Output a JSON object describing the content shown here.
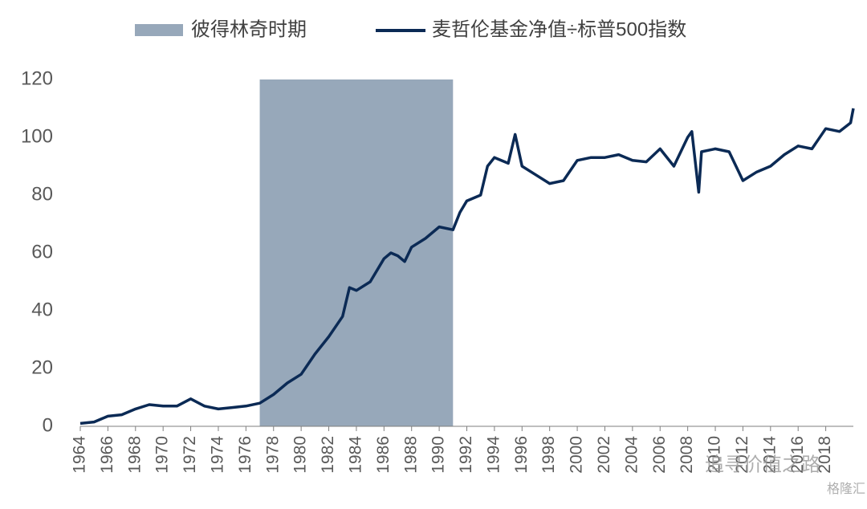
{
  "chart_data": {
    "type": "line",
    "shaded_regions": [
      {
        "name": "彼得林奇时期",
        "start": 1977,
        "end": 1991,
        "color": "#97a8ba"
      }
    ],
    "series": [
      {
        "name": "麦哲伦基金净值÷标普500指数",
        "color": "#0b2a55",
        "x": [
          1964,
          1965,
          1966,
          1967,
          1968,
          1969,
          1970,
          1971,
          1972,
          1973,
          1974,
          1975,
          1976,
          1977,
          1978,
          1979,
          1980,
          1981,
          1982,
          1983,
          1983.5,
          1984,
          1985,
          1986,
          1986.5,
          1987,
          1987.5,
          1988,
          1989,
          1990,
          1991,
          1991.5,
          1992,
          1993,
          1993.5,
          1994,
          1995,
          1995.5,
          1996,
          1997,
          1998,
          1999,
          2000,
          2001,
          2002,
          2003,
          2004,
          2005,
          2006,
          2007,
          2008,
          2008.3,
          2008.8,
          2009,
          2010,
          2011,
          2012,
          2013,
          2014,
          2015,
          2016,
          2017,
          2018,
          2019,
          2019.8,
          2020
        ],
        "values": [
          1,
          1.5,
          3.5,
          4,
          6,
          7.5,
          7,
          7,
          9.5,
          7,
          6,
          6.5,
          7,
          8,
          11,
          15,
          18,
          25,
          31,
          38,
          48,
          47,
          50,
          58,
          60,
          59,
          57,
          62,
          65,
          69,
          68,
          74,
          78,
          80,
          90,
          93,
          91,
          101,
          90,
          87,
          84,
          85,
          92,
          93,
          93,
          94,
          92,
          91.5,
          96,
          90,
          100,
          102,
          81,
          95,
          96,
          95,
          85,
          88,
          90,
          94,
          97,
          96,
          103,
          102,
          105,
          110
        ]
      }
    ],
    "xlim": [
      1964,
      2020
    ],
    "xticks": [
      1964,
      1966,
      1968,
      1970,
      1972,
      1974,
      1976,
      1978,
      1980,
      1982,
      1984,
      1986,
      1988,
      1990,
      1992,
      1994,
      1996,
      1998,
      2000,
      2002,
      2004,
      2006,
      2008,
      2010,
      2012,
      2014,
      2016,
      2018
    ],
    "ylim": [
      0,
      120
    ],
    "yticks": [
      0,
      20,
      40,
      60,
      80,
      100,
      120
    ],
    "annotations": [
      "追寻价值之路",
      "格隆汇"
    ]
  }
}
